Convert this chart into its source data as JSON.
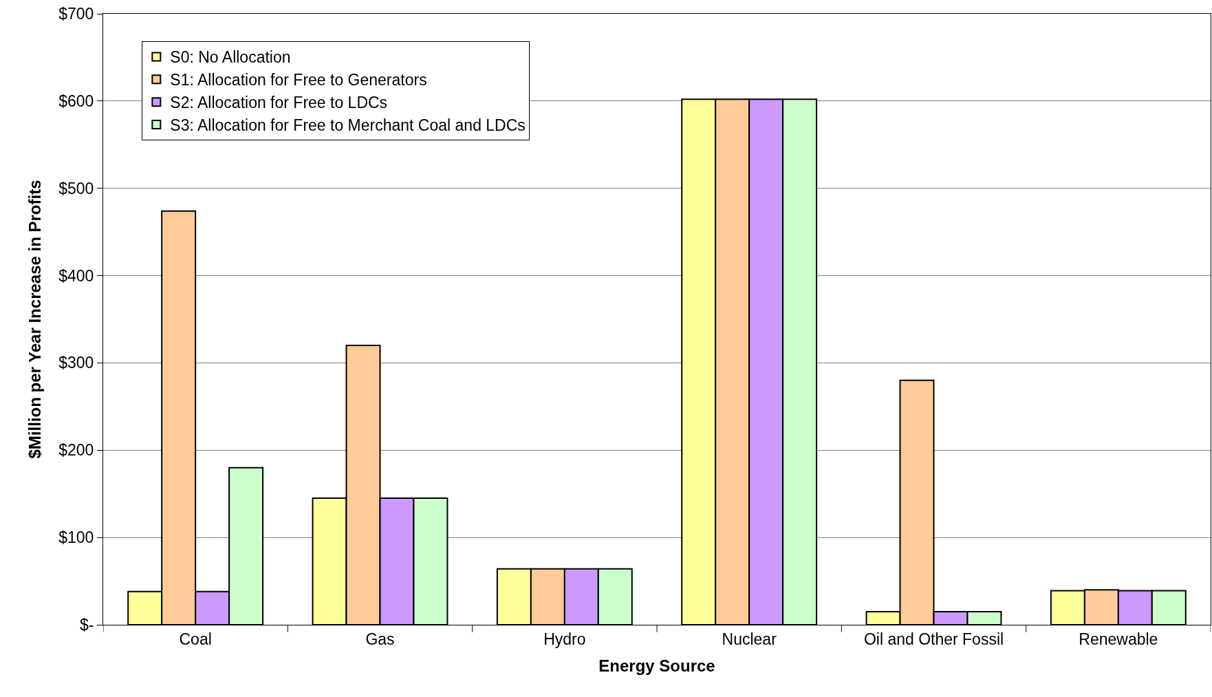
{
  "chart_data": {
    "type": "bar",
    "xlabel": "Energy Source",
    "ylabel": "$Million per Year Increase in Profits",
    "categories": [
      "Coal",
      "Gas",
      "Hydro",
      "Nuclear",
      "Oil and Other Fossil",
      "Renewable"
    ],
    "series": [
      {
        "name": "S0: No Allocation",
        "color": "#ffff99",
        "values": [
          38,
          145,
          64,
          602,
          15,
          39
        ]
      },
      {
        "name": "S1: Allocation for Free to Generators",
        "color": "#ffcc99",
        "values": [
          474,
          320,
          64,
          602,
          280,
          40
        ]
      },
      {
        "name": "S2: Allocation for Free to LDCs",
        "color": "#cc99ff",
        "values": [
          38,
          145,
          64,
          602,
          15,
          39
        ]
      },
      {
        "name": "S3: Allocation for Free to Merchant Coal and LDCs",
        "color": "#ccffcc",
        "values": [
          180,
          145,
          64,
          602,
          15,
          39
        ]
      }
    ],
    "ylim": [
      0,
      700
    ],
    "yticks": [
      {
        "value": 0,
        "label": "$-"
      },
      {
        "value": 100,
        "label": "$100"
      },
      {
        "value": 200,
        "label": "$200"
      },
      {
        "value": 300,
        "label": "$300"
      },
      {
        "value": 400,
        "label": "$400"
      },
      {
        "value": 500,
        "label": "$500"
      },
      {
        "value": 600,
        "label": "$600"
      },
      {
        "value": 700,
        "label": "$700"
      }
    ],
    "grid": "y",
    "legend": "top left"
  }
}
